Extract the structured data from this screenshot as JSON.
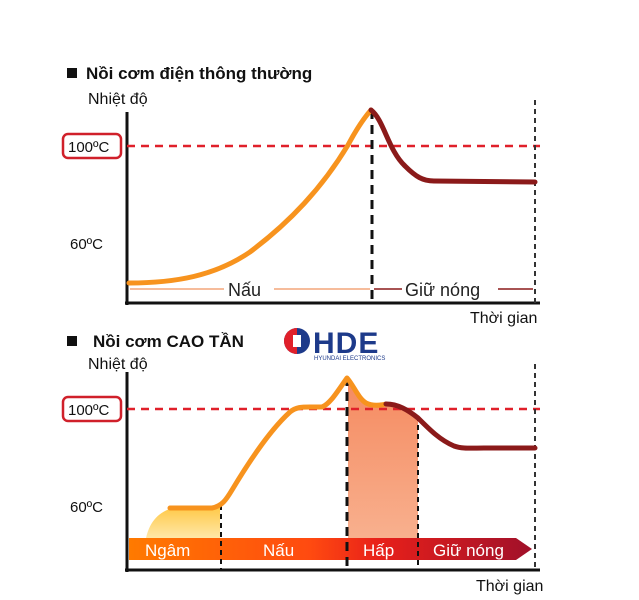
{
  "brand": {
    "name": "HDE",
    "subtitle": "HYUNDAI ELECTRONICS"
  },
  "chart_data": [
    {
      "type": "line",
      "title": "Nồi cơm điện thông thường",
      "ylabel": "Nhiệt độ",
      "xlabel": "Thời gian",
      "y_ticks": [
        "100ºC",
        "60ºC"
      ],
      "phases": [
        "Nấu",
        "Giữ nóng"
      ],
      "series": [
        {
          "color": "#f7931e",
          "segment": "cooking"
        },
        {
          "color": "#8b1a1a",
          "segment": "keep-warm"
        }
      ]
    },
    {
      "type": "line",
      "title": "Nồi cơm CAO TẦN",
      "ylabel": "Nhiệt độ",
      "xlabel": "Thời gian",
      "y_ticks": [
        "100ºC",
        "60ºC"
      ],
      "phases": [
        "Ngâm",
        "Nấu",
        "Hấp",
        "Giữ nóng"
      ],
      "series": [
        {
          "color": "#f7931e",
          "segment": "cooking"
        },
        {
          "color": "#8b1a1a",
          "segment": "keep-warm"
        }
      ]
    }
  ],
  "colors": {
    "ref_line": "#e0202a",
    "tick_box": "#d0202a",
    "curve_heat": "#f7931e",
    "curve_warm": "#8b1a1a",
    "soak_fill": "#ffd36b",
    "steam_fill": "#f7a07a",
    "arrow_start": "#ff7a00",
    "arrow_end": "#a0102a"
  }
}
